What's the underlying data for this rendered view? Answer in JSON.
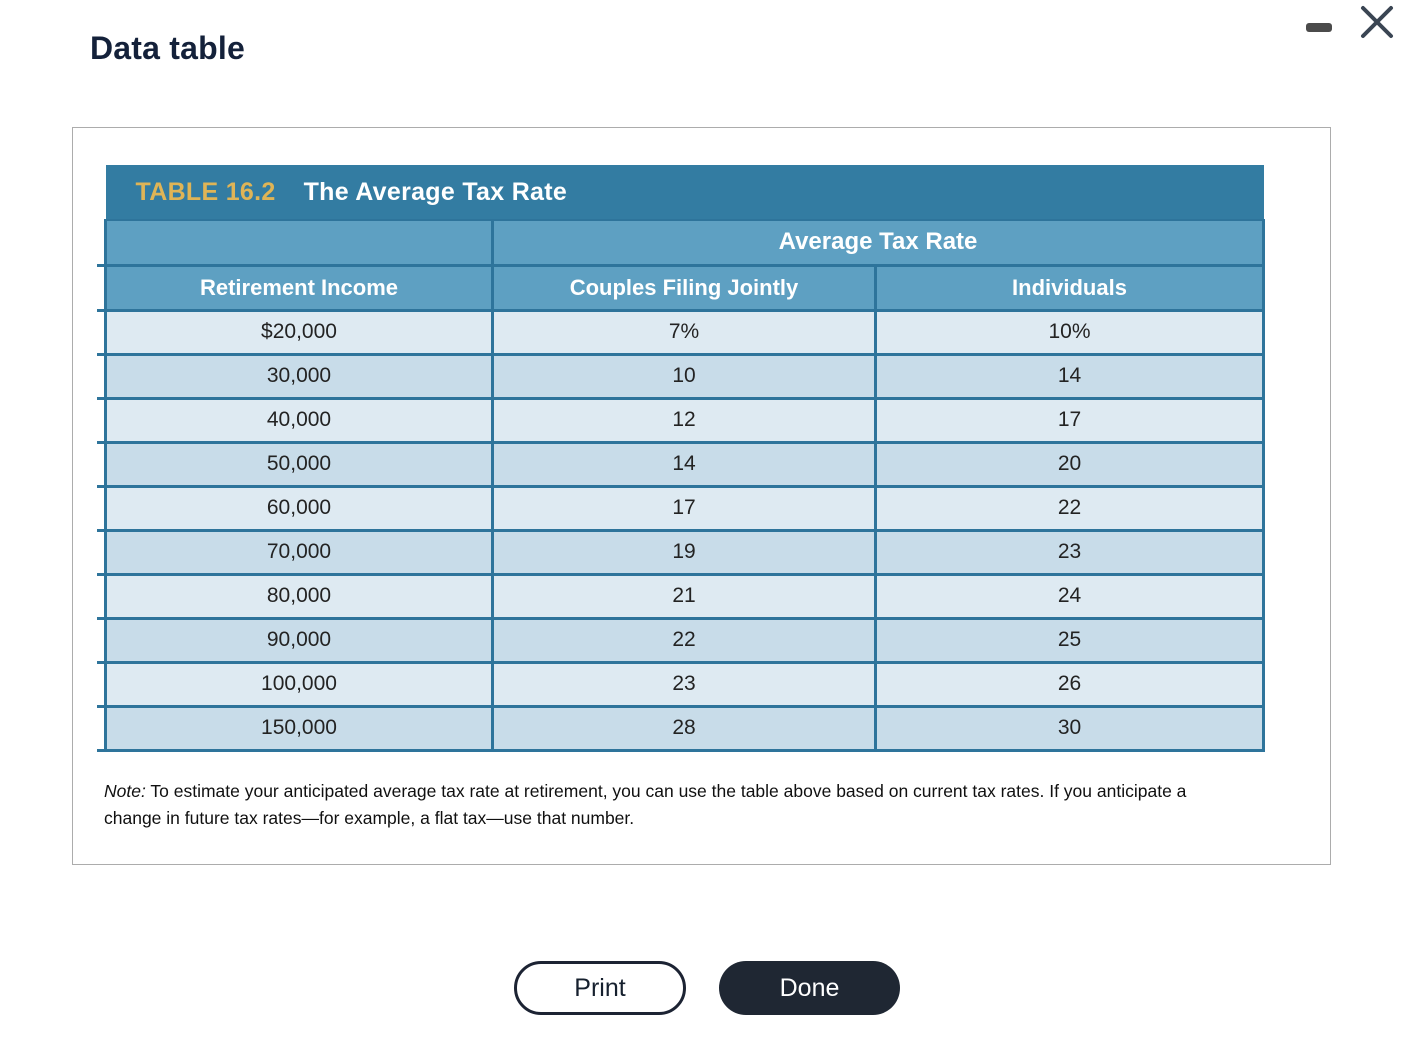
{
  "window": {
    "title": "Data table",
    "icons": {
      "minimize": "minimize-icon",
      "close": "close-icon"
    }
  },
  "table": {
    "label": "TABLE 16.2",
    "title": "The Average Tax Rate",
    "group_header": "Average Tax Rate",
    "columns": [
      "Retirement Income",
      "Couples Filing Jointly",
      "Individuals"
    ],
    "rows": [
      [
        "$20,000",
        "7%",
        "10%"
      ],
      [
        "30,000",
        "10",
        "14"
      ],
      [
        "40,000",
        "12",
        "17"
      ],
      [
        "50,000",
        "14",
        "20"
      ],
      [
        "60,000",
        "17",
        "22"
      ],
      [
        "70,000",
        "19",
        "23"
      ],
      [
        "80,000",
        "21",
        "24"
      ],
      [
        "90,000",
        "22",
        "25"
      ],
      [
        "100,000",
        "23",
        "26"
      ],
      [
        "150,000",
        "28",
        "30"
      ]
    ]
  },
  "note": {
    "prefix": "Note:",
    "body": " To estimate your anticipated average tax rate at retirement, you can use the table above based on current tax rates. If you anticipate a change in future tax rates—for example, a flat tax—use that number."
  },
  "buttons": {
    "print": "Print",
    "done": "Done"
  },
  "colors": {
    "table_title_bg": "#337CA2",
    "table_header_bg": "#5EA0C2",
    "row_light": "#DEEAF2",
    "row_dark": "#C8DCE9",
    "table_border": "#2E749B",
    "table_label_gold": "#DFB456",
    "button_dark": "#1F2733",
    "title_text": "#14213A"
  }
}
